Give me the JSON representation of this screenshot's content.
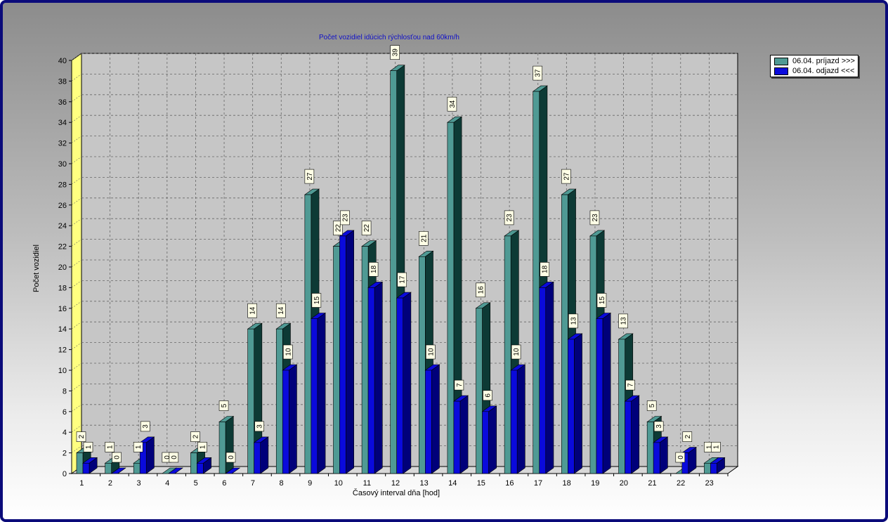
{
  "chart_data": {
    "type": "bar",
    "title": "Počet vozidiel idúcich rýchlosťou nad 60km/h",
    "xlabel": "Časový interval dňa [hod]",
    "ylabel": "Počet vozidiel",
    "ylim": [
      0,
      40
    ],
    "yticks": [
      "0",
      "2",
      "4",
      "6",
      "8",
      "10",
      "12",
      "14",
      "16",
      "18",
      "20",
      "22",
      "24",
      "26",
      "28",
      "30",
      "32",
      "34",
      "36",
      "38",
      "40"
    ],
    "categories": [
      "1",
      "2",
      "3",
      "4",
      "5",
      "6",
      "7",
      "8",
      "9",
      "10",
      "11",
      "12",
      "13",
      "14",
      "15",
      "16",
      "17",
      "18",
      "19",
      "20",
      "21",
      "22",
      "23"
    ],
    "series": [
      {
        "name": "06.04.  príjazd >>>",
        "color": "#4f9a94",
        "side": "#0d3a35",
        "values": [
          2,
          1,
          1,
          0,
          2,
          5,
          14,
          14,
          27,
          22,
          22,
          39,
          21,
          34,
          16,
          23,
          37,
          27,
          23,
          13,
          5,
          0,
          1
        ],
        "labels": [
          "2",
          "1",
          "1",
          "0",
          "2",
          "5",
          "14",
          "14",
          "27",
          "22",
          "22",
          "39",
          "21",
          "34",
          "16",
          "23",
          "37",
          "27",
          "23",
          "13",
          "5",
          "0",
          "1"
        ]
      },
      {
        "name": "06.04.  odjazd <<<",
        "color": "#0a0adc",
        "side": "#00007a",
        "values": [
          1,
          0,
          3,
          0,
          1,
          0,
          3,
          10,
          15,
          23,
          18,
          17,
          10,
          7,
          6,
          10,
          18,
          13,
          15,
          7,
          3,
          2,
          1
        ],
        "labels": [
          "1",
          "0",
          "3",
          "0",
          "1",
          "0",
          "3",
          "10",
          "15",
          "23",
          "18",
          "17",
          "10",
          "7",
          "6",
          "10",
          "18",
          "13",
          "15",
          "7",
          "3",
          "2",
          "1"
        ]
      }
    ],
    "grid": true,
    "legend_position": "top-right",
    "background": "#c6c6c6",
    "wall_color": "#ffff80"
  }
}
